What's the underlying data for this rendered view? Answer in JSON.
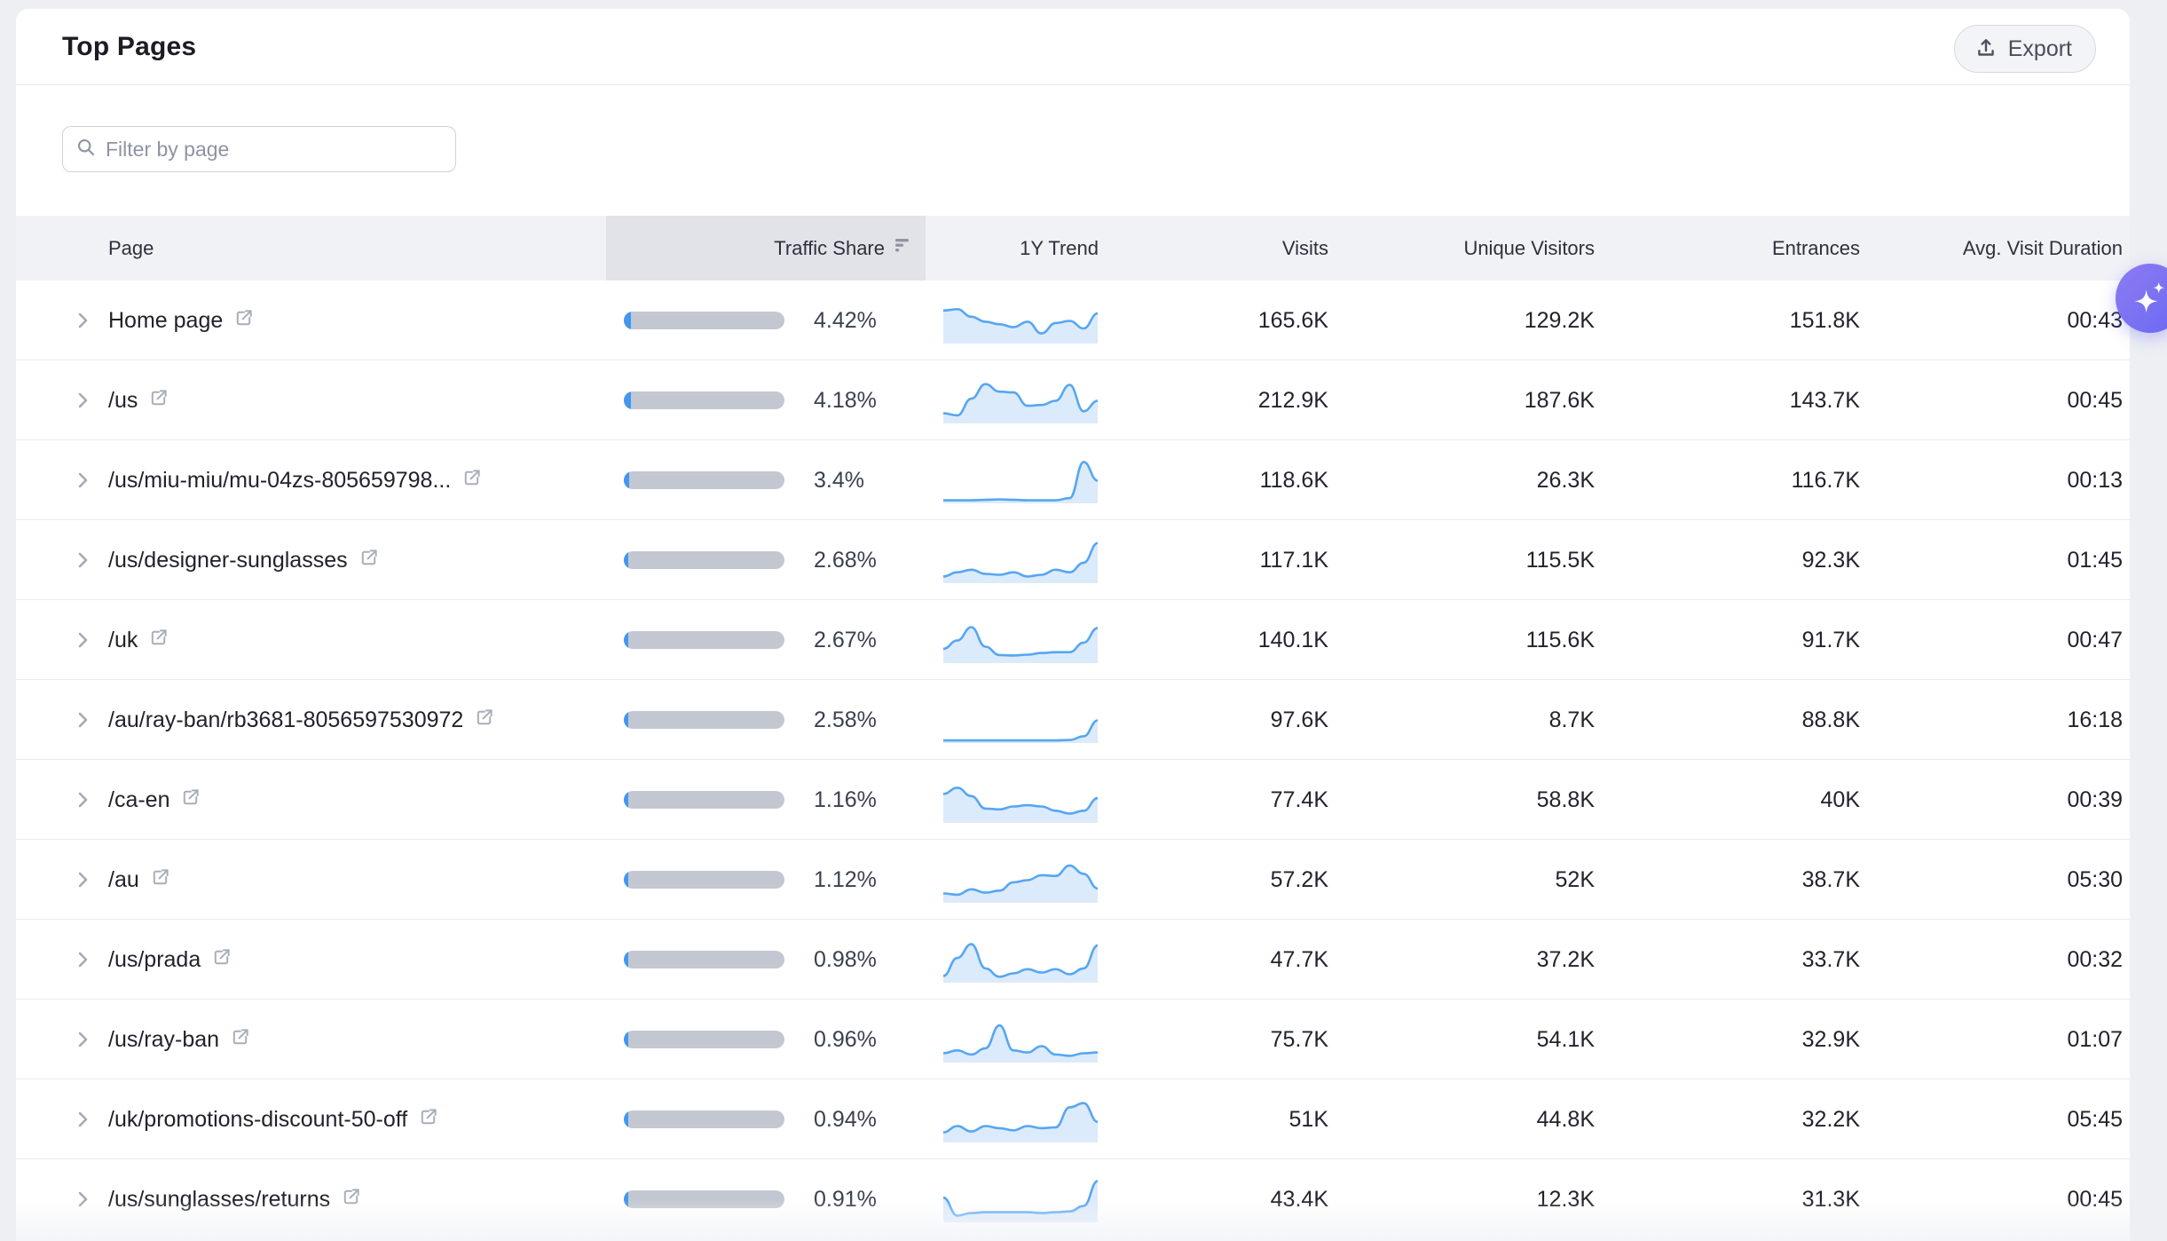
{
  "card": {
    "title": "Top Pages"
  },
  "export_button": {
    "label": "Export"
  },
  "search": {
    "placeholder": "Filter by page"
  },
  "table": {
    "columns": {
      "page": "Page",
      "traffic_share": "Traffic Share",
      "trend": "1Y Trend",
      "visits": "Visits",
      "unique_visitors": "Unique Visitors",
      "entrances": "Entrances",
      "avg_visit_duration": "Avg. Visit Duration"
    },
    "sorted_column": "Traffic Share",
    "rows": [
      {
        "page": "Home page",
        "traffic_share_pct": 4.42,
        "traffic_share_label": "4.42%",
        "trend": [
          0.75,
          0.78,
          0.6,
          0.48,
          0.42,
          0.35,
          0.48,
          0.2,
          0.45,
          0.5,
          0.32,
          0.68
        ],
        "visits": "165.6K",
        "unique_visitors": "129.2K",
        "entrances": "151.8K",
        "avg_visit_duration": "00:43"
      },
      {
        "page": "/us",
        "traffic_share_pct": 4.18,
        "traffic_share_label": "4.18%",
        "trend": [
          0.2,
          0.15,
          0.55,
          0.9,
          0.72,
          0.7,
          0.38,
          0.4,
          0.5,
          0.88,
          0.25,
          0.5
        ],
        "visits": "212.9K",
        "unique_visitors": "187.6K",
        "entrances": "143.7K",
        "avg_visit_duration": "00:45"
      },
      {
        "page": "/us/miu-miu/mu-04zs-805659798...",
        "traffic_share_pct": 3.4,
        "traffic_share_label": "3.4%",
        "trend": [
          0.03,
          0.03,
          0.03,
          0.04,
          0.05,
          0.04,
          0.03,
          0.03,
          0.03,
          0.08,
          0.95,
          0.5
        ],
        "visits": "118.6K",
        "unique_visitors": "26.3K",
        "entrances": "116.7K",
        "avg_visit_duration": "00:13"
      },
      {
        "page": "/us/designer-sunglasses",
        "traffic_share_pct": 2.68,
        "traffic_share_label": "2.68%",
        "trend": [
          0.12,
          0.22,
          0.28,
          0.18,
          0.16,
          0.22,
          0.12,
          0.16,
          0.28,
          0.22,
          0.45,
          0.92
        ],
        "visits": "117.1K",
        "unique_visitors": "115.5K",
        "entrances": "92.3K",
        "avg_visit_duration": "01:45"
      },
      {
        "page": "/uk",
        "traffic_share_pct": 2.67,
        "traffic_share_label": "2.67%",
        "trend": [
          0.3,
          0.5,
          0.82,
          0.35,
          0.15,
          0.14,
          0.16,
          0.2,
          0.22,
          0.22,
          0.45,
          0.8
        ],
        "visits": "140.1K",
        "unique_visitors": "115.6K",
        "entrances": "91.7K",
        "avg_visit_duration": "00:47"
      },
      {
        "page": "/au/ray-ban/rb3681-8056597530972",
        "traffic_share_pct": 2.58,
        "traffic_share_label": "2.58%",
        "trend": [
          0.02,
          0.02,
          0.02,
          0.02,
          0.02,
          0.02,
          0.02,
          0.02,
          0.02,
          0.03,
          0.12,
          0.5
        ],
        "visits": "97.6K",
        "unique_visitors": "8.7K",
        "entrances": "88.8K",
        "avg_visit_duration": "16:18"
      },
      {
        "page": "/ca-en",
        "traffic_share_pct": 1.16,
        "traffic_share_label": "1.16%",
        "trend": [
          0.65,
          0.8,
          0.6,
          0.3,
          0.28,
          0.35,
          0.38,
          0.35,
          0.25,
          0.18,
          0.25,
          0.55
        ],
        "visits": "77.4K",
        "unique_visitors": "58.8K",
        "entrances": "40K",
        "avg_visit_duration": "00:39"
      },
      {
        "page": "/au",
        "traffic_share_pct": 1.12,
        "traffic_share_label": "1.12%",
        "trend": [
          0.18,
          0.15,
          0.28,
          0.2,
          0.25,
          0.45,
          0.5,
          0.62,
          0.6,
          0.85,
          0.65,
          0.3
        ],
        "visits": "57.2K",
        "unique_visitors": "52K",
        "entrances": "38.7K",
        "avg_visit_duration": "05:30"
      },
      {
        "page": "/us/prada",
        "traffic_share_pct": 0.98,
        "traffic_share_label": "0.98%",
        "trend": [
          0.12,
          0.55,
          0.88,
          0.3,
          0.1,
          0.18,
          0.28,
          0.2,
          0.28,
          0.16,
          0.3,
          0.85
        ],
        "visits": "47.7K",
        "unique_visitors": "37.2K",
        "entrances": "33.7K",
        "avg_visit_duration": "00:32"
      },
      {
        "page": "/us/ray-ban",
        "traffic_share_pct": 0.96,
        "traffic_share_label": "0.96%",
        "trend": [
          0.18,
          0.25,
          0.15,
          0.3,
          0.85,
          0.25,
          0.2,
          0.35,
          0.15,
          0.12,
          0.18,
          0.2
        ],
        "visits": "75.7K",
        "unique_visitors": "54.1K",
        "entrances": "32.9K",
        "avg_visit_duration": "01:07"
      },
      {
        "page": "/uk/promotions-discount-50-off",
        "traffic_share_pct": 0.94,
        "traffic_share_label": "0.94%",
        "trend": [
          0.2,
          0.35,
          0.22,
          0.35,
          0.3,
          0.25,
          0.35,
          0.3,
          0.32,
          0.8,
          0.9,
          0.45
        ],
        "visits": "51K",
        "unique_visitors": "44.8K",
        "entrances": "32.2K",
        "avg_visit_duration": "05:45"
      },
      {
        "page": "/us/sunglasses/returns",
        "traffic_share_pct": 0.91,
        "traffic_share_label": "0.91%",
        "trend": [
          0.55,
          0.12,
          0.18,
          0.2,
          0.2,
          0.2,
          0.2,
          0.18,
          0.2,
          0.22,
          0.35,
          0.95
        ],
        "visits": "43.4K",
        "unique_visitors": "12.3K",
        "entrances": "31.3K",
        "avg_visit_duration": "00:45"
      }
    ]
  },
  "colors": {
    "bar_track": "#c3c7d1",
    "bar_fill": "#4297ee",
    "spark_line": "#57a6f1",
    "spark_fill": "#dcebfb",
    "accent_gradient_start": "#8d7bf2",
    "accent_gradient_end": "#6a69f3"
  }
}
